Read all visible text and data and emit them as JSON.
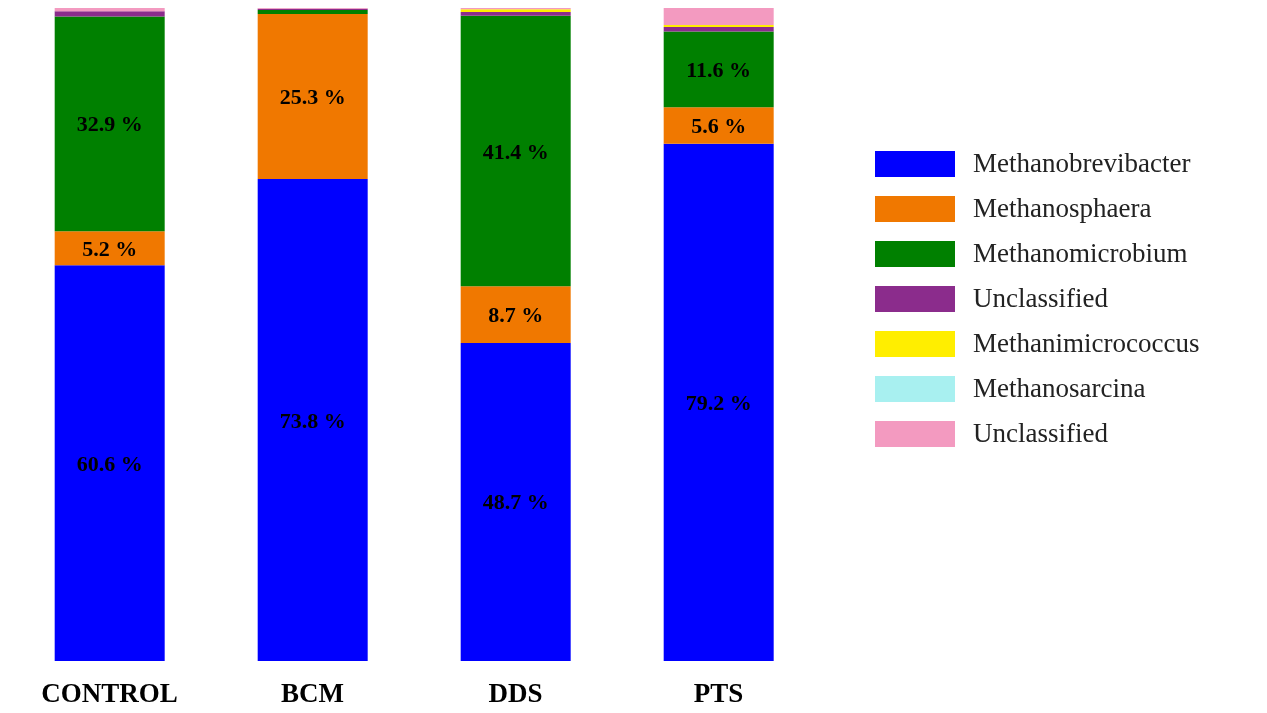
{
  "chart_data": {
    "type": "bar",
    "stacked": true,
    "legend": "right",
    "categories": [
      "CONTROL",
      "BCM",
      "DDS",
      "PTS"
    ],
    "series": [
      {
        "name": "Methanobrevibacter",
        "color": "#0000ff",
        "values": [
          60.6,
          73.8,
          48.7,
          79.2
        ],
        "value_labels": [
          "60.6 %",
          "73.8 %",
          "48.7 %",
          "79.2 %"
        ]
      },
      {
        "name": "Methanosphaera",
        "color": "#f07800",
        "values": [
          5.2,
          25.3,
          8.7,
          5.6
        ],
        "value_labels": [
          "5.2 %",
          "25.3 %",
          "8.7 %",
          "5.6 %"
        ]
      },
      {
        "name": "Methanomicrobium",
        "color": "#008000",
        "values": [
          32.9,
          0.6,
          41.4,
          11.6
        ],
        "value_labels": [
          "32.9 %",
          null,
          "41.4 %",
          "11.6 %"
        ]
      },
      {
        "name": "Unclassified",
        "color": "#8b2c8c",
        "values": [
          0.8,
          0.2,
          0.6,
          0.7
        ]
      },
      {
        "name": "Methanimicrococcus",
        "color": "#ffee00",
        "values": [
          null,
          null,
          0.4,
          0.3
        ]
      },
      {
        "name": "Methanosarcina",
        "color": "#a8f0f0",
        "values": [
          null,
          null,
          null,
          null
        ]
      },
      {
        "name": "Unclassified",
        "color": "#f39ac0",
        "values": [
          0.5,
          0.1,
          0.2,
          2.6
        ]
      }
    ]
  }
}
